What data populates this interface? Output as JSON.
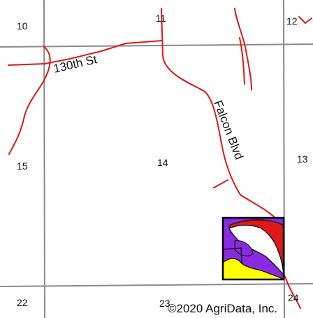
{
  "map": {
    "colors": {
      "grid": "#8a8a8a",
      "road": "#e01818",
      "frame": "#000000",
      "parcel_purple": "#8a2be2",
      "parcel_yellow": "#ffff00",
      "parcel_red": "#e01818",
      "parcel_white": "#ffffff"
    },
    "sections": {
      "s10": "10",
      "s11": "11",
      "s12": "12",
      "s13": "13",
      "s14": "14",
      "s15": "15",
      "s22": "22",
      "s23": "23",
      "s24": "24"
    },
    "roads": {
      "road_130th": "130th St",
      "road_falcon": "Falcon Blvd"
    },
    "copyright": "©2020 AgriData, Inc."
  }
}
